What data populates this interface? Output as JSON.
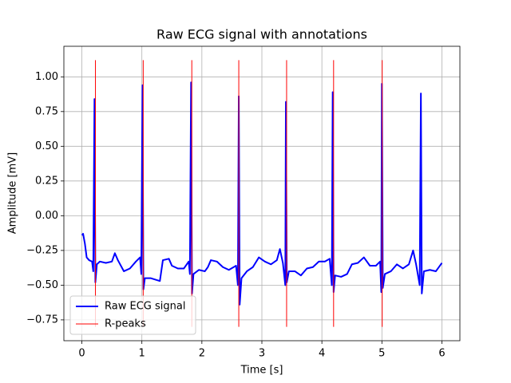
{
  "chart_data": {
    "type": "line",
    "title": "Raw ECG signal with annotations",
    "xlabel": "Time [s]",
    "ylabel": "Amplitude [mV]",
    "x": [
      0.0,
      0.02,
      0.05,
      0.08,
      0.12,
      0.17,
      0.19,
      0.21,
      0.225,
      0.25,
      0.3,
      0.4,
      0.5,
      0.55,
      0.6,
      0.7,
      0.8,
      0.9,
      0.97,
      0.99,
      1.01,
      1.025,
      1.05,
      1.15,
      1.3,
      1.35,
      1.45,
      1.5,
      1.6,
      1.7,
      1.78,
      1.8,
      1.82,
      1.835,
      1.86,
      1.95,
      2.05,
      2.1,
      2.15,
      2.25,
      2.35,
      2.45,
      2.57,
      2.6,
      2.615,
      2.63,
      2.66,
      2.75,
      2.85,
      2.95,
      3.05,
      3.15,
      3.25,
      3.3,
      3.35,
      3.39,
      3.4,
      3.415,
      3.45,
      3.55,
      3.65,
      3.75,
      3.85,
      3.95,
      4.05,
      4.13,
      4.165,
      4.18,
      4.195,
      4.22,
      4.32,
      4.42,
      4.5,
      4.6,
      4.7,
      4.8,
      4.9,
      4.97,
      4.99,
      5.0,
      5.015,
      5.05,
      5.15,
      5.25,
      5.35,
      5.45,
      5.52,
      5.57,
      5.63,
      5.65,
      5.665,
      5.7,
      5.8,
      5.9,
      6.0
    ],
    "series": [
      {
        "name": "Raw ECG signal",
        "color": "#0000ff",
        "values": [
          -0.14,
          -0.13,
          -0.2,
          -0.3,
          -0.32,
          -0.33,
          -0.4,
          0.84,
          -0.48,
          -0.35,
          -0.33,
          -0.34,
          -0.33,
          -0.27,
          -0.32,
          -0.4,
          -0.38,
          -0.33,
          -0.3,
          -0.42,
          0.94,
          -0.53,
          -0.45,
          -0.45,
          -0.47,
          -0.32,
          -0.31,
          -0.36,
          -0.38,
          -0.38,
          -0.33,
          -0.42,
          0.96,
          -0.56,
          -0.42,
          -0.39,
          -0.4,
          -0.37,
          -0.32,
          -0.33,
          -0.37,
          -0.39,
          -0.36,
          -0.5,
          0.86,
          -0.64,
          -0.45,
          -0.4,
          -0.37,
          -0.3,
          -0.33,
          -0.35,
          -0.32,
          -0.24,
          -0.34,
          -0.5,
          0.82,
          -0.48,
          -0.4,
          -0.4,
          -0.43,
          -0.38,
          -0.37,
          -0.33,
          -0.33,
          -0.31,
          -0.5,
          0.89,
          -0.55,
          -0.43,
          -0.44,
          -0.42,
          -0.35,
          -0.34,
          -0.3,
          -0.36,
          -0.36,
          -0.33,
          -0.55,
          0.95,
          -0.52,
          -0.42,
          -0.4,
          -0.35,
          -0.38,
          -0.35,
          -0.25,
          -0.35,
          -0.5,
          0.88,
          -0.56,
          -0.4,
          -0.39,
          -0.4,
          -0.34
        ]
      }
    ],
    "vlines": {
      "name": "R-peaks",
      "color": "#ff0000",
      "x": [
        0.226,
        1.022,
        1.832,
        2.615,
        3.412,
        4.195,
        5.005
      ],
      "ymin": -0.8,
      "ymax": 1.12
    },
    "xlim": [
      -0.3,
      6.3
    ],
    "ylim": [
      -0.9,
      1.22
    ],
    "xticks": [
      0,
      1,
      2,
      3,
      4,
      5,
      6
    ],
    "yticks": [
      {
        "value": -0.75,
        "label": "−0.75"
      },
      {
        "value": -0.5,
        "label": "−0.50"
      },
      {
        "value": -0.25,
        "label": "−0.25"
      },
      {
        "value": 0,
        "label": "0.00"
      },
      0.25,
      {
        "value": 0.5,
        "label": "0.50"
      },
      0.75,
      {
        "value": 1,
        "label": "1.00"
      }
    ],
    "grid": true,
    "legend": "lower left"
  }
}
